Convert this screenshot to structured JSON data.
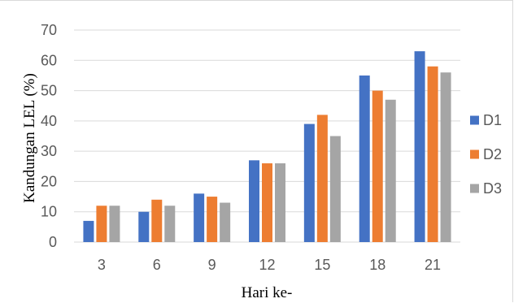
{
  "chart_data": {
    "type": "bar",
    "title": "",
    "xlabel": "Hari ke-",
    "ylabel": "Kandungan LEL (%)",
    "categories": [
      "3",
      "6",
      "9",
      "12",
      "15",
      "18",
      "21"
    ],
    "series": [
      {
        "name": "D1",
        "color": "#4472c4",
        "values": [
          7,
          10,
          16,
          27,
          39,
          55,
          63
        ]
      },
      {
        "name": "D2",
        "color": "#ed7d31",
        "values": [
          12,
          14,
          15,
          26,
          42,
          50,
          58
        ]
      },
      {
        "name": "D3",
        "color": "#a5a5a5",
        "values": [
          12,
          12,
          13,
          26,
          35,
          47,
          56
        ]
      }
    ],
    "ylim": [
      0,
      70
    ],
    "yticks": [
      "0",
      "10",
      "20",
      "30",
      "40",
      "50",
      "60",
      "70"
    ],
    "grid": true,
    "legend_position": "right"
  }
}
